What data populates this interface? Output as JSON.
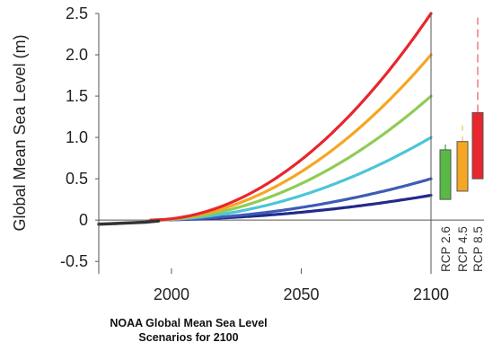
{
  "caption": {
    "line1": "NOAA Global Mean Sea Level",
    "line2": "Scenarios for 2100"
  },
  "chart_data": {
    "type": "line",
    "title": "",
    "xlabel": "",
    "ylabel": "Global Mean Sea Level (m)",
    "xlim": [
      1972,
      2100
    ],
    "ylim": [
      -0.65,
      2.5
    ],
    "xticks": [
      "2000",
      "2050",
      "2100"
    ],
    "xtick_values": [
      2000,
      2050,
      2100
    ],
    "yticks": [
      "2.5",
      "2.0",
      "1.5",
      "1.0",
      "0.5",
      "0",
      "-0.5"
    ],
    "ytick_values": [
      2.5,
      2.0,
      1.5,
      1.0,
      0.5,
      0,
      -0.5
    ],
    "grid": false,
    "observed": {
      "color": "#333333",
      "points": [
        [
          1972,
          -0.05
        ],
        [
          1980,
          -0.04
        ],
        [
          1990,
          -0.025
        ],
        [
          1995,
          -0.01
        ]
      ]
    },
    "projection_start": 1992,
    "projection_ref": 2000,
    "series": [
      {
        "value_2100": 0.3,
        "color": "#232a8c"
      },
      {
        "value_2100": 0.5,
        "color": "#3f5bb7"
      },
      {
        "value_2100": 1.0,
        "color": "#4cc5d8"
      },
      {
        "value_2100": 1.5,
        "color": "#8fcc55"
      },
      {
        "value_2100": 2.0,
        "color": "#f5a623"
      },
      {
        "value_2100": 2.5,
        "color": "#e8262d"
      }
    ],
    "rcp_ranges": [
      {
        "label": "RCP 2.6",
        "color": "#58b947",
        "low": 0.25,
        "high": 0.85,
        "whisker_high": 0.95,
        "whisker_color": "#58b947"
      },
      {
        "label": "RCP 4.5",
        "color": "#f5a623",
        "low": 0.35,
        "high": 0.95,
        "whisker_high": 1.17,
        "whisker_color": "#f8cc7d"
      },
      {
        "label": "RCP 8.5",
        "color": "#e8262d",
        "low": 0.5,
        "high": 1.3,
        "whisker_high": 2.45,
        "whisker_color": "#ee7a7e"
      }
    ]
  }
}
